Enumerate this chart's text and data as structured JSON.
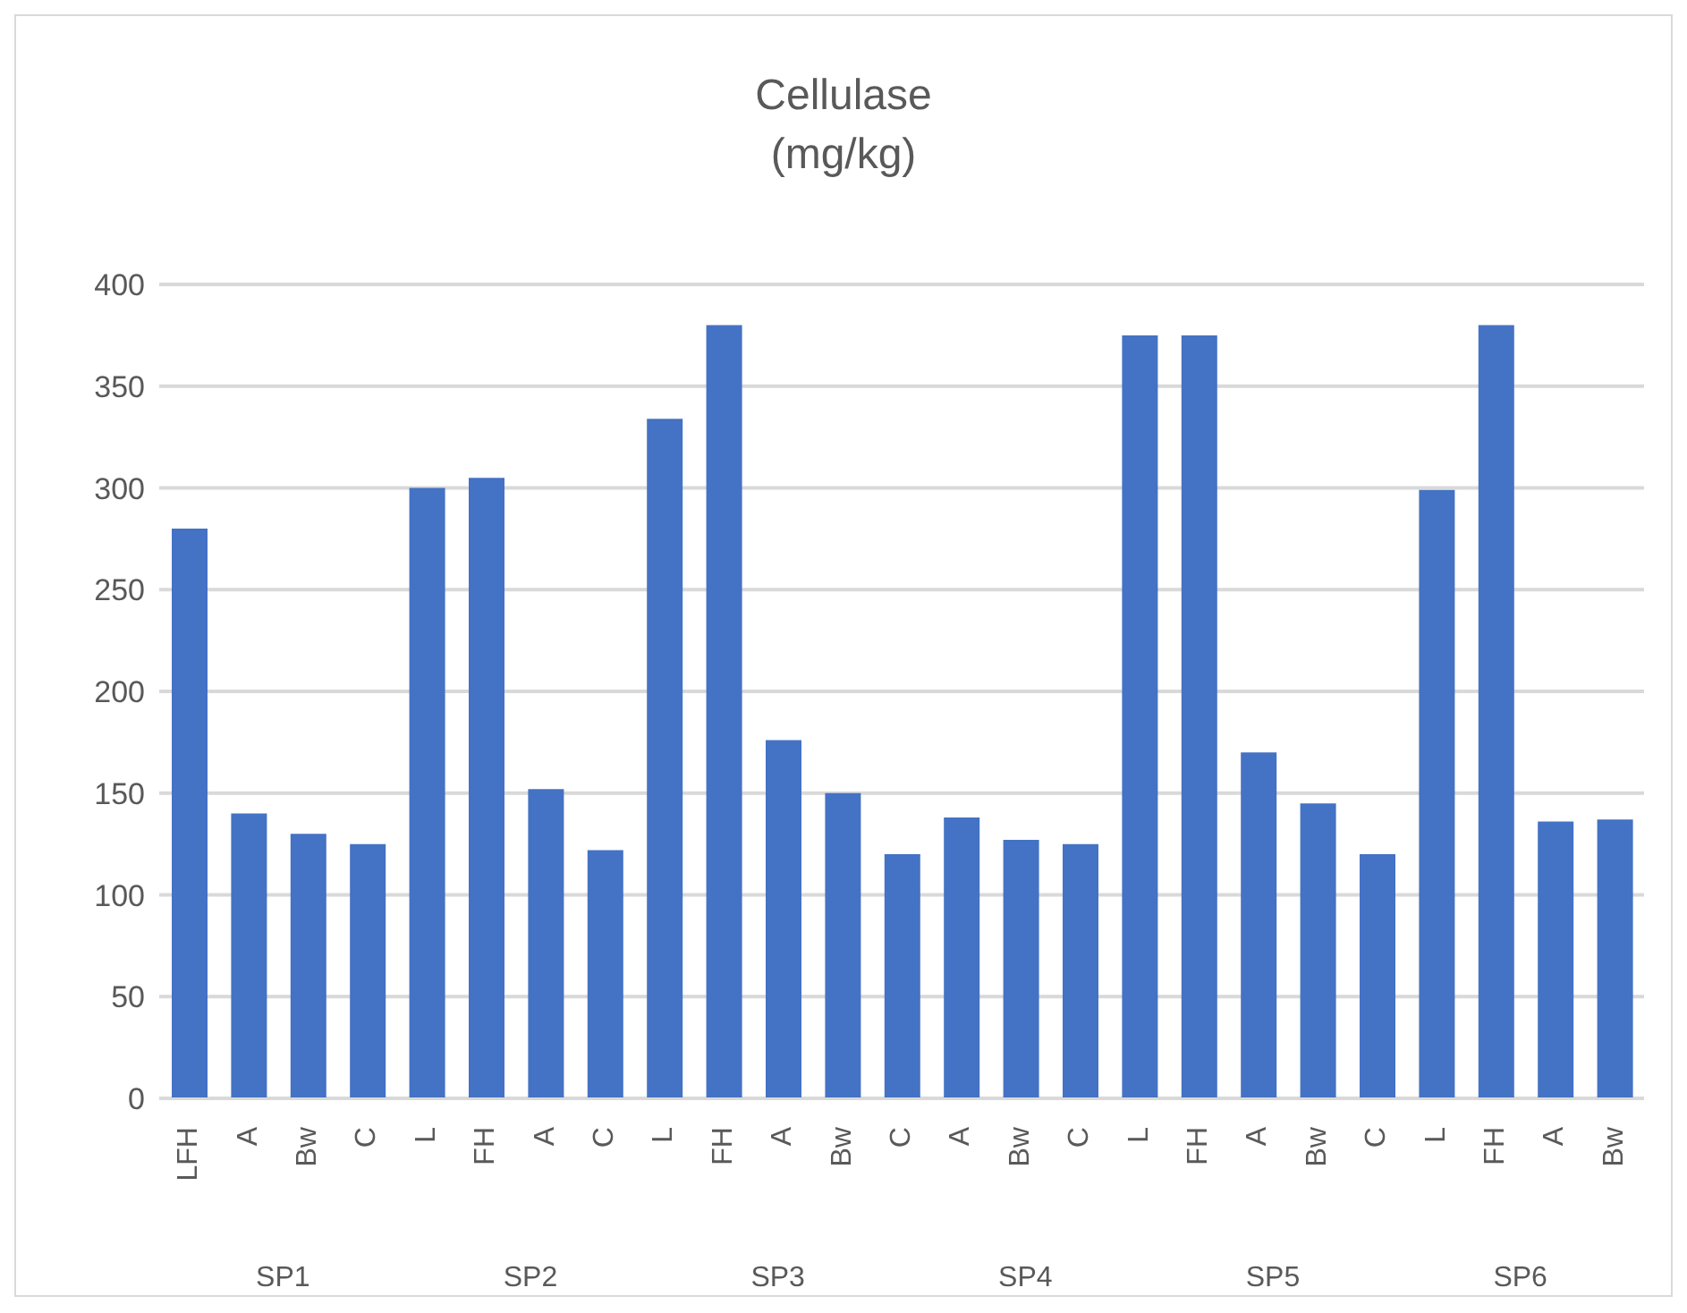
{
  "chart_data": {
    "type": "bar",
    "title": "Cellulase (mg/kg)",
    "categories": [
      "LFH",
      "A",
      "Bw",
      "C",
      "L",
      "FH",
      "A",
      "C",
      "L",
      "FH",
      "A",
      "Bw",
      "C",
      "A",
      "Bw",
      "C",
      "L",
      "FH",
      "A",
      "Bw",
      "C",
      "L",
      "FH",
      "A",
      "Bw"
    ],
    "values": [
      280,
      140,
      130,
      125,
      300,
      305,
      152,
      122,
      334,
      380,
      176,
      150,
      120,
      138,
      127,
      125,
      375,
      375,
      170,
      145,
      120,
      299,
      380,
      136,
      137
    ],
    "color": "#4472c4",
    "ylim": [
      0,
      400
    ],
    "yticks": [
      0,
      50,
      100,
      150,
      200,
      250,
      300,
      350,
      400
    ],
    "grid": "y",
    "annotations": [
      "SP1",
      "SP2",
      "SP3",
      "SP4",
      "SP5",
      "SP6"
    ]
  }
}
